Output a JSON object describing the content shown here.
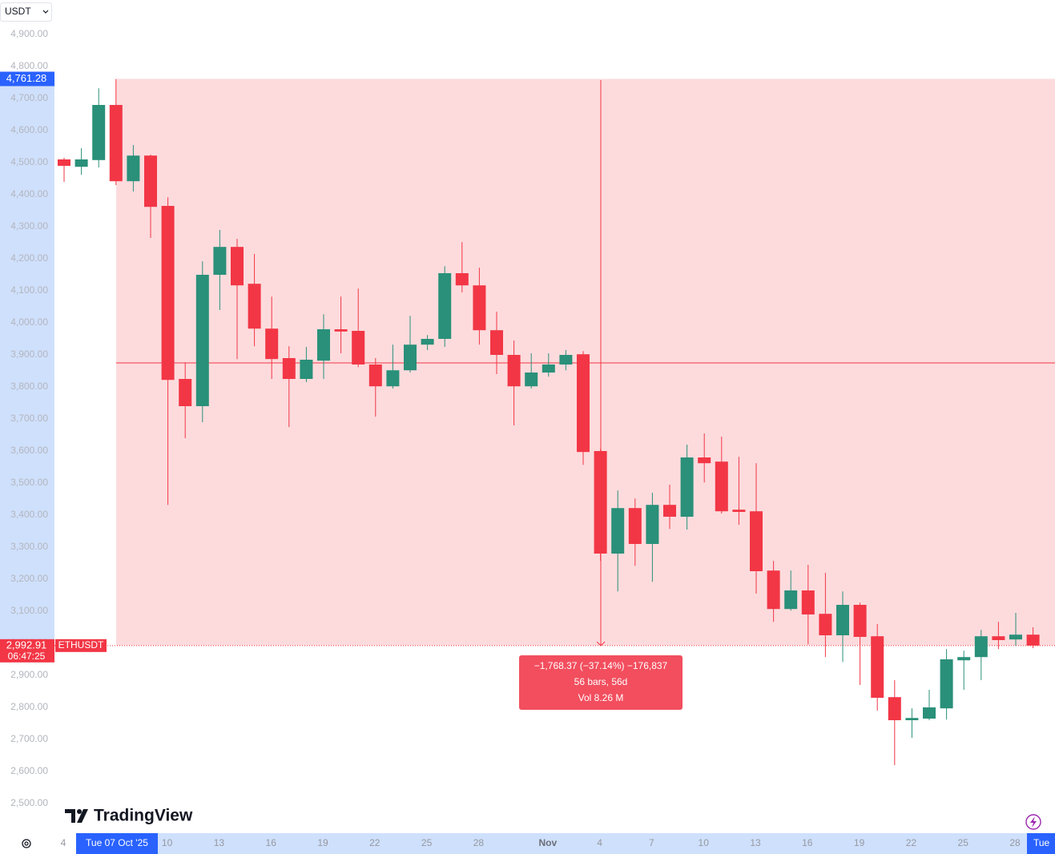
{
  "chart_data": {
    "type": "candlestick",
    "currency": "USDT",
    "symbol": "ETHUSDT",
    "countdown": "06:47:25",
    "brand": "TradingView",
    "categories": [
      "4",
      null,
      null,
      null,
      null,
      null,
      "10",
      null,
      null,
      "13",
      null,
      null,
      "16",
      null,
      null,
      "19",
      null,
      null,
      "22",
      null,
      null,
      "25",
      null,
      null,
      "28",
      null,
      null,
      null,
      "Nov",
      null,
      null,
      "4",
      null,
      null,
      "7",
      null,
      null,
      "10",
      null,
      null,
      "13",
      null,
      null,
      "16",
      null,
      null,
      "19",
      null,
      null,
      "22",
      null,
      null,
      "25",
      null,
      null,
      "28",
      null
    ],
    "open": [
      4510,
      4487,
      4508,
      4680,
      4442,
      4522,
      4365,
      3825,
      3740,
      4150,
      4237,
      4122,
      3982,
      3890,
      3825,
      3882,
      3980,
      3975,
      3870,
      3802,
      3852,
      3932,
      3950,
      4155,
      4117,
      3977,
      3900,
      3802,
      3845,
      3870,
      3902,
      3600,
      3280,
      3422,
      3310,
      3432,
      3395,
      3580,
      3567,
      3417,
      3412,
      3227,
      3107,
      3165,
      3092,
      3025,
      3120,
      3022,
      2832,
      2760,
      2765,
      2797,
      2947,
      2957,
      3022,
      3012,
      3027
    ],
    "high": [
      4515,
      4545,
      4732,
      4761,
      4555,
      4525,
      4392,
      3877,
      4192,
      4290,
      4262,
      4215,
      4082,
      3927,
      3925,
      4027,
      4082,
      4107,
      3890,
      3932,
      4022,
      3962,
      4177,
      4252,
      4172,
      4035,
      3945,
      3905,
      3905,
      3915,
      3912,
      3607,
      3477,
      3452,
      3470,
      3495,
      3620,
      3655,
      3645,
      3582,
      3562,
      3257,
      3227,
      3245,
      3220,
      3162,
      3127,
      3060,
      2885,
      2797,
      2855,
      2982,
      2977,
      3042,
      3067,
      3095,
      3050
    ],
    "low": [
      4440,
      4462,
      4485,
      4430,
      4410,
      4265,
      3432,
      3640,
      3690,
      4040,
      3887,
      3927,
      3825,
      3675,
      3815,
      3825,
      3905,
      3862,
      3707,
      3795,
      3845,
      3915,
      3925,
      4095,
      3932,
      3840,
      3680,
      3795,
      3832,
      3852,
      3557,
      3257,
      3162,
      3242,
      3192,
      3357,
      3355,
      3502,
      3405,
      3370,
      3155,
      3067,
      3102,
      2997,
      2957,
      2942,
      2870,
      2790,
      2620,
      2705,
      2760,
      2762,
      2855,
      2885,
      2982,
      2992,
      2985
    ],
    "close": [
      4490,
      4510,
      4680,
      4442,
      4522,
      4362,
      3822,
      3740,
      4150,
      4237,
      4117,
      3982,
      3887,
      3825,
      3885,
      3980,
      3973,
      3870,
      3802,
      3852,
      3932,
      3950,
      4155,
      4117,
      3977,
      3900,
      3802,
      3845,
      3870,
      3900,
      3597,
      3280,
      3422,
      3310,
      3432,
      3395,
      3580,
      3562,
      3412,
      3410,
      3225,
      3107,
      3165,
      3090,
      3025,
      3120,
      3020,
      2830,
      2760,
      2767,
      2800,
      2950,
      2957,
      3022,
      3010,
      3027,
      2992.91
    ],
    "up_color": "#2a9079",
    "down_color": "#f23645",
    "ylim": [
      2407.5,
      5007.5
    ],
    "yticks": [
      {
        "value": 2500,
        "label": "2,500.00"
      },
      {
        "value": 2600,
        "label": "2,600.00"
      },
      {
        "value": 2700,
        "label": "2,700.00"
      },
      {
        "value": 2800,
        "label": "2,800.00"
      },
      {
        "value": 2900,
        "label": "2,900.00"
      },
      {
        "value": 3000,
        "label": "3,000.00"
      },
      {
        "value": 3100,
        "label": "3,100.00"
      },
      {
        "value": 3200,
        "label": "3,200.00"
      },
      {
        "value": 3300,
        "label": "3,300.00"
      },
      {
        "value": 3400,
        "label": "3,400.00"
      },
      {
        "value": 3500,
        "label": "3,500.00"
      },
      {
        "value": 3600,
        "label": "3,600.00"
      },
      {
        "value": 3700,
        "label": "3,700.00"
      },
      {
        "value": 3800,
        "label": "3,800.00"
      },
      {
        "value": 3900,
        "label": "3,900.00"
      },
      {
        "value": 4000,
        "label": "4,000.00"
      },
      {
        "value": 4100,
        "label": "4,100.00"
      },
      {
        "value": 4200,
        "label": "4,200.00"
      },
      {
        "value": 4300,
        "label": "4,300.00"
      },
      {
        "value": 4400,
        "label": "4,400.00"
      },
      {
        "value": 4500,
        "label": "4,500.00"
      },
      {
        "value": 4600,
        "label": "4,600.00"
      },
      {
        "value": 4700,
        "label": "4,700.00"
      },
      {
        "value": 4800,
        "label": "4,800.00"
      },
      {
        "value": 4900,
        "label": "4,900.00"
      }
    ],
    "last_price": {
      "value": 2992.91,
      "label": "2,992.91"
    },
    "measure": {
      "from": {
        "value": 4761.28,
        "label": "4,761.28"
      },
      "to": {
        "value": 2992.91
      },
      "change": "−1,768.37 (−37.14%) −176,837",
      "bars": "56 bars, 56d",
      "volume": "Vol 8.26 M",
      "date_from": "Tue 07 Oct '25",
      "date_to": "Tue"
    }
  }
}
